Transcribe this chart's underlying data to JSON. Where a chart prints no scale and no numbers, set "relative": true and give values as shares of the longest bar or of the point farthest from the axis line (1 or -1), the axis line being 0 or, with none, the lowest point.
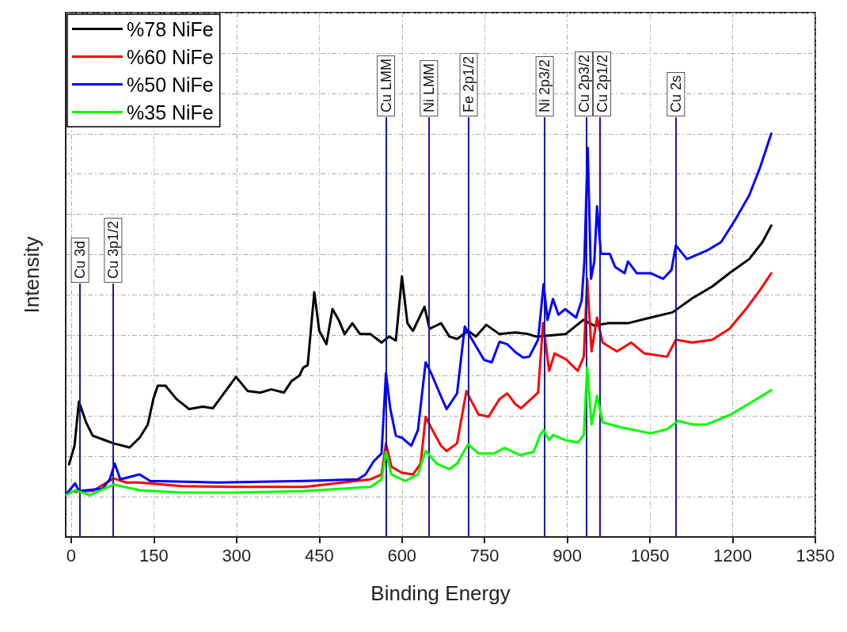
{
  "chart_data": {
    "type": "line",
    "xlabel": "Binding Energy",
    "ylabel": "Intensity",
    "relative": true,
    "xlim": [
      -10,
      1350
    ],
    "xticks": [
      0,
      150,
      300,
      450,
      600,
      750,
      900,
      1050,
      1200,
      1350
    ],
    "grid": true,
    "legend": "top left",
    "marker": "none",
    "line_style": "solid",
    "series": [
      {
        "name": "%78 NiFe",
        "color": "#000000",
        "x": [
          -4,
          6,
          14,
          27,
          39,
          57,
          77,
          106,
          124,
          139,
          149,
          157,
          171,
          191,
          214,
          239,
          257,
          277,
          299,
          320,
          343,
          363,
          386,
          400,
          414,
          421,
          429,
          441,
          450,
          463,
          474,
          486,
          496,
          510,
          524,
          543,
          563,
          577,
          589,
          600,
          610,
          620,
          641,
          650,
          671,
          686,
          700,
          720,
          734,
          753,
          777,
          806,
          829,
          843,
          870,
          897,
          929,
          949,
          974,
          1010,
          1051,
          1091,
          1127,
          1163,
          1194,
          1230,
          1254,
          1270
        ],
        "values": [
          0.18,
          0.226,
          0.336,
          0.284,
          0.251,
          0.242,
          0.232,
          0.222,
          0.246,
          0.279,
          0.342,
          0.375,
          0.375,
          0.342,
          0.317,
          0.323,
          0.319,
          0.356,
          0.397,
          0.362,
          0.358,
          0.366,
          0.358,
          0.387,
          0.4,
          0.42,
          0.426,
          0.607,
          0.511,
          0.478,
          0.565,
          0.536,
          0.503,
          0.53,
          0.503,
          0.503,
          0.482,
          0.497,
          0.487,
          0.646,
          0.53,
          0.511,
          0.571,
          0.516,
          0.53,
          0.497,
          0.491,
          0.511,
          0.497,
          0.526,
          0.503,
          0.507,
          0.503,
          0.497,
          0.5,
          0.503,
          0.538,
          0.524,
          0.53,
          0.53,
          0.544,
          0.557,
          0.592,
          0.621,
          0.654,
          0.689,
          0.731,
          0.772
        ]
      },
      {
        "name": "%60 NiFe",
        "color": "#ff0000",
        "x": [
          7,
          40,
          77,
          100,
          124,
          200,
          300,
          424,
          543,
          563,
          571,
          581,
          600,
          620,
          634,
          643,
          653,
          671,
          681,
          700,
          710,
          717,
          724,
          739,
          757,
          777,
          791,
          806,
          816,
          847,
          856,
          867,
          877,
          897,
          919,
          930,
          936,
          944,
          954,
          964,
          990,
          1016,
          1040,
          1081,
          1097,
          1127,
          1163,
          1194,
          1224,
          1250,
          1270
        ],
        "values": [
          0.112,
          0.115,
          0.145,
          0.135,
          0.135,
          0.126,
          0.124,
          0.124,
          0.143,
          0.155,
          0.232,
          0.174,
          0.159,
          0.155,
          0.182,
          0.298,
          0.271,
          0.226,
          0.213,
          0.232,
          0.309,
          0.362,
          0.342,
          0.304,
          0.298,
          0.342,
          0.356,
          0.329,
          0.319,
          0.358,
          0.53,
          0.412,
          0.455,
          0.441,
          0.412,
          0.447,
          0.64,
          0.46,
          0.544,
          0.482,
          0.46,
          0.482,
          0.455,
          0.447,
          0.489,
          0.482,
          0.489,
          0.516,
          0.565,
          0.613,
          0.654
        ]
      },
      {
        "name": "%50 NiFe",
        "color": "#0000ff",
        "x": [
          -9,
          7,
          14,
          57,
          70,
          79,
          89,
          124,
          143,
          267,
          424,
          520,
          534,
          549,
          563,
          571,
          579,
          589,
          600,
          617,
          629,
          643,
          653,
          671,
          681,
          700,
          714,
          724,
          749,
          763,
          777,
          791,
          806,
          820,
          831,
          847,
          857,
          864,
          874,
          884,
          896,
          916,
          926,
          931,
          937,
          943,
          949,
          954,
          961,
          977,
          987,
          1004,
          1010,
          1026,
          1051,
          1074,
          1089,
          1097,
          1117,
          1153,
          1179,
          1204,
          1230,
          1250,
          1270
        ],
        "values": [
          0.106,
          0.133,
          0.114,
          0.12,
          0.143,
          0.182,
          0.143,
          0.155,
          0.139,
          0.135,
          0.139,
          0.143,
          0.155,
          0.188,
          0.207,
          0.406,
          0.317,
          0.251,
          0.246,
          0.226,
          0.265,
          0.433,
          0.406,
          0.348,
          0.317,
          0.356,
          0.522,
          0.497,
          0.439,
          0.433,
          0.484,
          0.478,
          0.458,
          0.445,
          0.447,
          0.489,
          0.627,
          0.538,
          0.59,
          0.551,
          0.565,
          0.544,
          0.586,
          0.683,
          0.965,
          0.64,
          0.683,
          0.82,
          0.702,
          0.702,
          0.669,
          0.654,
          0.683,
          0.654,
          0.654,
          0.64,
          0.662,
          0.723,
          0.689,
          0.71,
          0.731,
          0.785,
          0.847,
          0.917,
          1.0
        ]
      },
      {
        "name": "%35 NiFe",
        "color": "#00ff00",
        "x": [
          -9,
          7,
          33,
          77,
          124,
          200,
          300,
          424,
          543,
          563,
          571,
          581,
          606,
          629,
          643,
          663,
          686,
          700,
          720,
          739,
          767,
          786,
          814,
          839,
          850,
          857,
          867,
          874,
          897,
          919,
          930,
          936,
          944,
          954,
          964,
          1000,
          1051,
          1081,
          1101,
          1127,
          1153,
          1194,
          1230,
          1270
        ],
        "values": [
          0.104,
          0.116,
          0.104,
          0.13,
          0.116,
          0.11,
          0.11,
          0.114,
          0.124,
          0.143,
          0.211,
          0.155,
          0.139,
          0.155,
          0.213,
          0.182,
          0.168,
          0.182,
          0.23,
          0.207,
          0.207,
          0.221,
          0.203,
          0.211,
          0.251,
          0.265,
          0.24,
          0.253,
          0.24,
          0.234,
          0.253,
          0.42,
          0.279,
          0.35,
          0.284,
          0.271,
          0.257,
          0.267,
          0.288,
          0.279,
          0.279,
          0.302,
          0.331,
          0.364
        ]
      }
    ],
    "ref_lines": [
      {
        "axis": "x",
        "value": 16,
        "label": "Cu 3d",
        "color": "#1a1a9e"
      },
      {
        "axis": "x",
        "value": 76,
        "label": "Cu 3p1/2",
        "color": "#1a1a9e"
      },
      {
        "axis": "x",
        "value": 571,
        "label": "Cu LMM",
        "color": "#1a1a9e"
      },
      {
        "axis": "x",
        "value": 649,
        "label": "Ni LMM",
        "color": "#1a1a9e"
      },
      {
        "axis": "x",
        "value": 721,
        "label": "Fe 2p1/2",
        "color": "#1a1a9e"
      },
      {
        "axis": "x",
        "value": 859,
        "label": "Ni 2p3/2",
        "color": "#1a1a9e"
      },
      {
        "axis": "x",
        "value": 934,
        "label": "Cu 2p3/2",
        "color": "#1a1a9e"
      },
      {
        "axis": "x",
        "value": 959,
        "label": "Cu 2p1/2",
        "color": "#1a1a9e"
      },
      {
        "axis": "x",
        "value": 1097,
        "label": "Cu 2s",
        "color": "#1a1a9e"
      }
    ]
  }
}
